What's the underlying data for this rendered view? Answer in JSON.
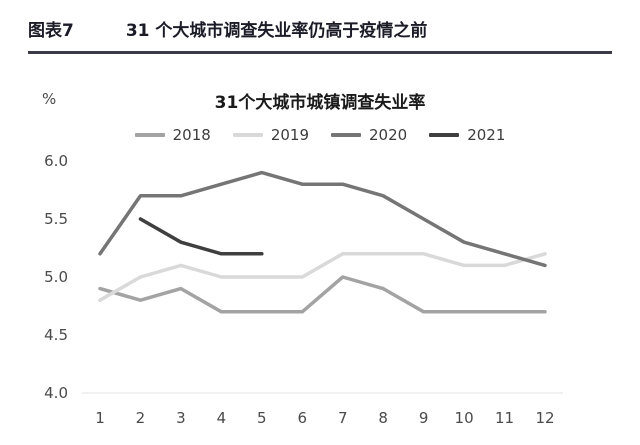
{
  "header": {
    "figure_label": "图表7",
    "figure_title": "31 个大城市调查失业率仍高于疫情之前"
  },
  "chart": {
    "title": "31个大城市城镇调查失业率",
    "y_unit": "%"
  },
  "chart_data": {
    "type": "line",
    "title": "31个大城市城镇调查失业率",
    "xlabel": "",
    "ylabel": "%",
    "ylim": [
      4.0,
      6.0
    ],
    "ytick_labels": [
      "6.0",
      "5.5",
      "5.0",
      "4.5",
      "4.0"
    ],
    "x": [
      1,
      2,
      3,
      4,
      5,
      6,
      7,
      8,
      9,
      10,
      11,
      12
    ],
    "grid": false,
    "legend_position": "top",
    "series": [
      {
        "name": "2018",
        "color": "#a3a3a3",
        "values": [
          4.9,
          4.8,
          4.9,
          4.7,
          4.7,
          4.7,
          5.0,
          4.9,
          4.7,
          4.7,
          4.7,
          4.7
        ]
      },
      {
        "name": "2019",
        "color": "#d9d9d9",
        "values": [
          4.8,
          5.0,
          5.1,
          5.0,
          5.0,
          5.0,
          5.2,
          5.2,
          5.2,
          5.1,
          5.1,
          5.2
        ]
      },
      {
        "name": "2020",
        "color": "#757575",
        "values": [
          5.2,
          5.7,
          5.7,
          5.8,
          5.9,
          5.8,
          5.8,
          5.7,
          5.5,
          5.3,
          5.2,
          5.1
        ]
      },
      {
        "name": "2021",
        "color": "#3f3f3f",
        "values": [
          null,
          5.5,
          5.3,
          5.2,
          5.2,
          null,
          null,
          null,
          null,
          null,
          null,
          null
        ]
      }
    ]
  }
}
